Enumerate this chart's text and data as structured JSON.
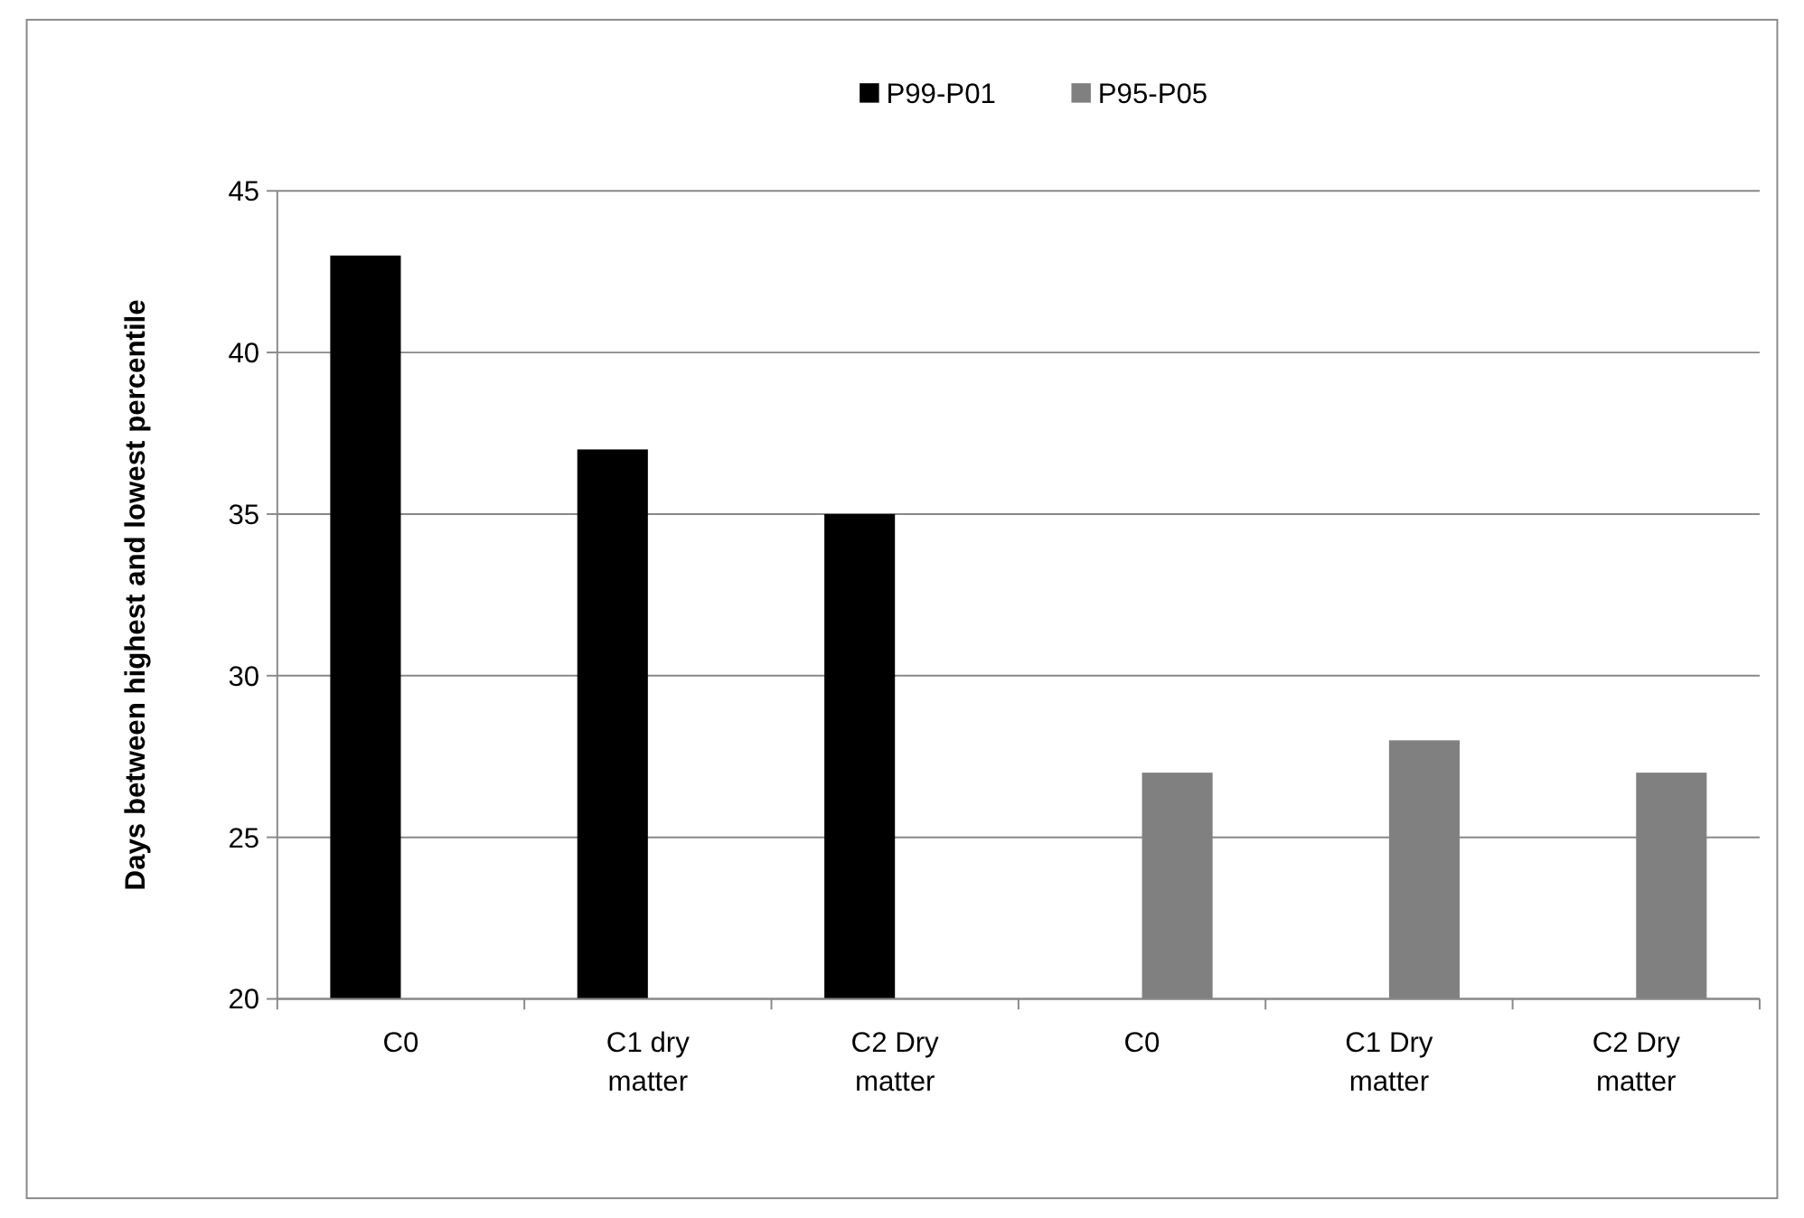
{
  "chart_data": {
    "type": "bar",
    "ylabel": "Days between highest and lowest percentile",
    "categories": [
      "C0",
      "C1 dry matter",
      "C2 Dry matter",
      "C0",
      "C1 Dry matter",
      "C2 Dry matter"
    ],
    "series": [
      {
        "name": "P99-P01",
        "color": "#000000",
        "values": [
          43,
          37,
          35,
          null,
          null,
          null
        ]
      },
      {
        "name": "P95-P05",
        "color": "#808080",
        "values": [
          null,
          null,
          null,
          27,
          28,
          27
        ]
      }
    ],
    "ylim": [
      20,
      45
    ],
    "yticks": [
      20,
      25,
      30,
      35,
      40,
      45
    ],
    "grid": "y",
    "legend": "top"
  }
}
